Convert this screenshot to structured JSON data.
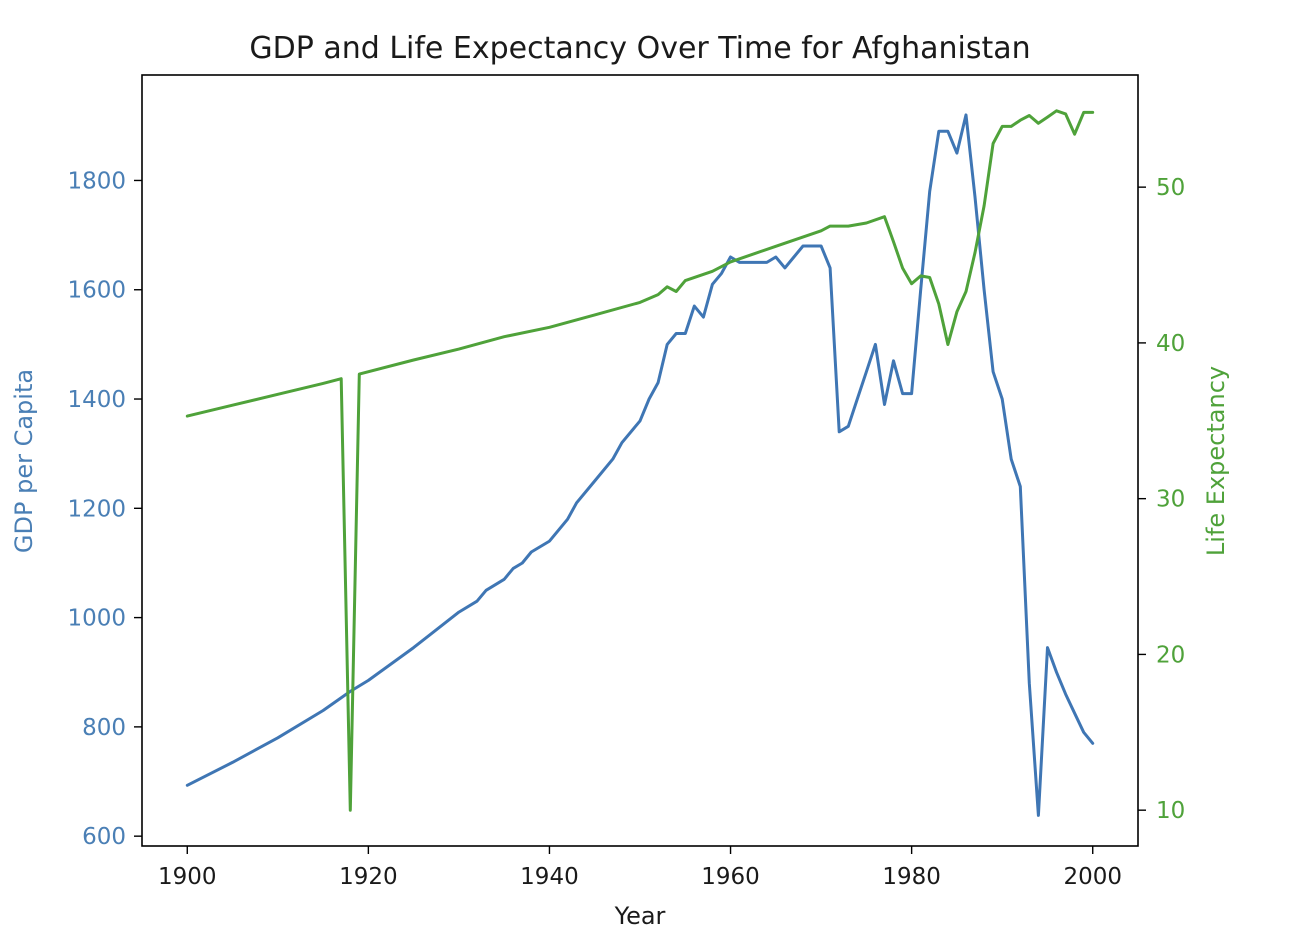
{
  "chart_data": {
    "type": "line",
    "title": "GDP and Life Expectancy Over Time for Afghanistan",
    "xlabel": "Year",
    "xlim": [
      1895,
      2005
    ],
    "xticks": [
      1900,
      1920,
      1940,
      1960,
      1980,
      2000
    ],
    "y_left": {
      "label": "GDP per Capita",
      "color": "#4a7fb5",
      "lim": [
        582,
        1993
      ],
      "ticks": [
        600,
        800,
        1000,
        1200,
        1400,
        1600,
        1800
      ]
    },
    "y_right": {
      "label": "Life Expectancy",
      "color": "#4fa23a",
      "lim": [
        7.7,
        57.2
      ],
      "ticks": [
        10,
        20,
        30,
        40,
        50
      ]
    },
    "series": [
      {
        "axis": "left",
        "color": "#3f76b4",
        "points": [
          [
            1900,
            693
          ],
          [
            1905,
            735
          ],
          [
            1910,
            780
          ],
          [
            1915,
            830
          ],
          [
            1918,
            865
          ],
          [
            1920,
            885
          ],
          [
            1925,
            945
          ],
          [
            1930,
            1010
          ],
          [
            1932,
            1030
          ],
          [
            1933,
            1050
          ],
          [
            1935,
            1070
          ],
          [
            1936,
            1090
          ],
          [
            1937,
            1100
          ],
          [
            1938,
            1120
          ],
          [
            1940,
            1140
          ],
          [
            1942,
            1180
          ],
          [
            1943,
            1210
          ],
          [
            1945,
            1250
          ],
          [
            1947,
            1290
          ],
          [
            1948,
            1320
          ],
          [
            1950,
            1360
          ],
          [
            1951,
            1400
          ],
          [
            1952,
            1430
          ],
          [
            1953,
            1500
          ],
          [
            1954,
            1520
          ],
          [
            1955,
            1520
          ],
          [
            1956,
            1570
          ],
          [
            1957,
            1550
          ],
          [
            1958,
            1610
          ],
          [
            1959,
            1630
          ],
          [
            1960,
            1660
          ],
          [
            1961,
            1650
          ],
          [
            1962,
            1650
          ],
          [
            1963,
            1650
          ],
          [
            1964,
            1650
          ],
          [
            1965,
            1660
          ],
          [
            1966,
            1640
          ],
          [
            1967,
            1660
          ],
          [
            1968,
            1680
          ],
          [
            1969,
            1680
          ],
          [
            1970,
            1680
          ],
          [
            1971,
            1640
          ],
          [
            1972,
            1340
          ],
          [
            1973,
            1350
          ],
          [
            1974,
            1400
          ],
          [
            1975,
            1450
          ],
          [
            1976,
            1500
          ],
          [
            1977,
            1390
          ],
          [
            1978,
            1470
          ],
          [
            1979,
            1410
          ],
          [
            1980,
            1410
          ],
          [
            1981,
            1600
          ],
          [
            1982,
            1780
          ],
          [
            1983,
            1890
          ],
          [
            1984,
            1890
          ],
          [
            1985,
            1850
          ],
          [
            1986,
            1920
          ],
          [
            1987,
            1770
          ],
          [
            1988,
            1600
          ],
          [
            1989,
            1450
          ],
          [
            1990,
            1400
          ],
          [
            1991,
            1290
          ],
          [
            1992,
            1240
          ],
          [
            1993,
            880
          ],
          [
            1994,
            638
          ],
          [
            1995,
            945
          ],
          [
            1996,
            900
          ],
          [
            1997,
            860
          ],
          [
            1998,
            825
          ],
          [
            1999,
            790
          ],
          [
            2000,
            770
          ]
        ]
      },
      {
        "axis": "right",
        "color": "#4fa23a",
        "points": [
          [
            1900,
            35.3
          ],
          [
            1905,
            36.0
          ],
          [
            1910,
            36.7
          ],
          [
            1915,
            37.4
          ],
          [
            1917,
            37.7
          ],
          [
            1918,
            10.0
          ],
          [
            1919,
            38.0
          ],
          [
            1925,
            38.9
          ],
          [
            1930,
            39.6
          ],
          [
            1935,
            40.4
          ],
          [
            1940,
            41.0
          ],
          [
            1945,
            41.8
          ],
          [
            1950,
            42.6
          ],
          [
            1952,
            43.1
          ],
          [
            1953,
            43.6
          ],
          [
            1954,
            43.3
          ],
          [
            1955,
            44.0
          ],
          [
            1958,
            44.6
          ],
          [
            1960,
            45.2
          ],
          [
            1965,
            46.2
          ],
          [
            1970,
            47.2
          ],
          [
            1971,
            47.5
          ],
          [
            1973,
            47.5
          ],
          [
            1975,
            47.7
          ],
          [
            1977,
            48.1
          ],
          [
            1978,
            46.5
          ],
          [
            1979,
            44.8
          ],
          [
            1980,
            43.8
          ],
          [
            1981,
            44.3
          ],
          [
            1982,
            44.2
          ],
          [
            1983,
            42.5
          ],
          [
            1984,
            39.9
          ],
          [
            1985,
            42.0
          ],
          [
            1986,
            43.3
          ],
          [
            1987,
            45.8
          ],
          [
            1988,
            48.8
          ],
          [
            1989,
            52.8
          ],
          [
            1990,
            53.9
          ],
          [
            1991,
            53.9
          ],
          [
            1992,
            54.3
          ],
          [
            1993,
            54.6
          ],
          [
            1994,
            54.1
          ],
          [
            1995,
            54.5
          ],
          [
            1996,
            54.9
          ],
          [
            1997,
            54.7
          ],
          [
            1998,
            53.4
          ],
          [
            1999,
            54.8
          ],
          [
            2000,
            54.8
          ]
        ]
      }
    ]
  }
}
